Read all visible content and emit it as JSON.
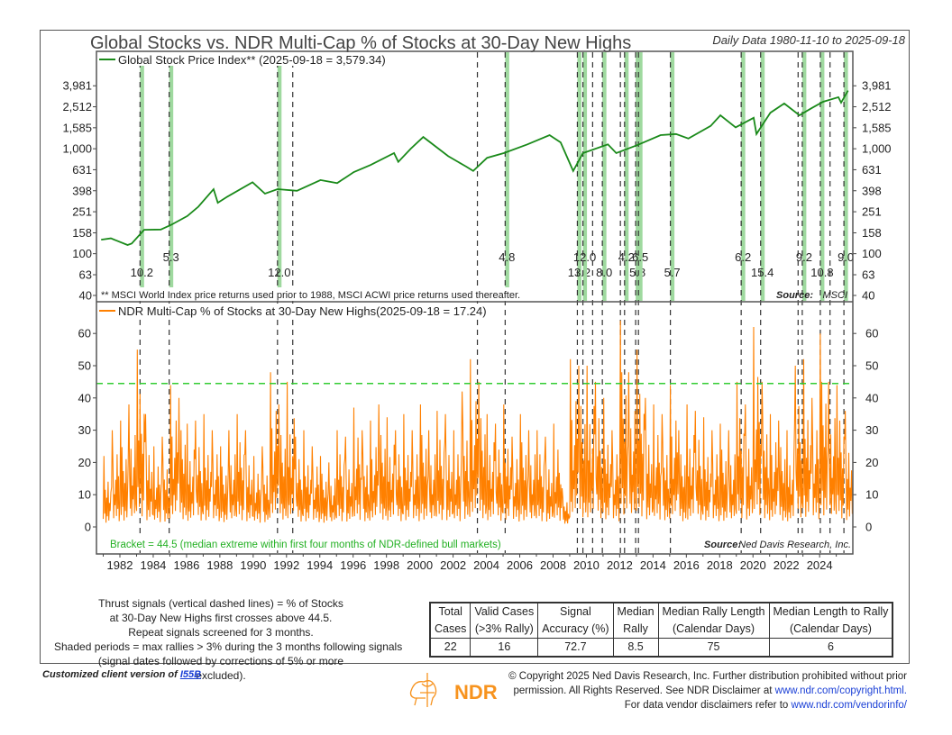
{
  "header": {
    "title": "Global Stocks vs. NDR Multi-Cap % of Stocks at 30-Day New Highs",
    "date_range": "Daily Data 1980-11-10 to 2025-09-18"
  },
  "chart_data": [
    {
      "type": "line",
      "panel": "upper",
      "series": [
        {
          "name": "Global Stock Price Index** (2025-09-18 = 3,579.34)",
          "color": "#1a8a1a",
          "points": [
            [
              "1980-11",
              136
            ],
            [
              "1981-06",
              140
            ],
            [
              "1982-06",
              121
            ],
            [
              "1982-09",
              125
            ],
            [
              "1983-06",
              169
            ],
            [
              "1984-06",
              170
            ],
            [
              "1985-01",
              187
            ],
            [
              "1986-01",
              228
            ],
            [
              "1986-09",
              280
            ],
            [
              "1987-08",
              412
            ],
            [
              "1987-11",
              306
            ],
            [
              "1988-06",
              350
            ],
            [
              "1989-12",
              480
            ],
            [
              "1990-09",
              373
            ],
            [
              "1991-06",
              412
            ],
            [
              "1992-08",
              398
            ],
            [
              "1994-01",
              503
            ],
            [
              "1995-01",
              470
            ],
            [
              "1996-01",
              600
            ],
            [
              "1997-01",
              700
            ],
            [
              "1998-06",
              908
            ],
            [
              "1998-09",
              750
            ],
            [
              "1999-06",
              1000
            ],
            [
              "2000-03",
              1295
            ],
            [
              "2001-09",
              850
            ],
            [
              "2002-10",
              675
            ],
            [
              "2003-03",
              614
            ],
            [
              "2004-01",
              820
            ],
            [
              "2005-01",
              908
            ],
            [
              "2006-06",
              1100
            ],
            [
              "2007-10",
              1350
            ],
            [
              "2008-06",
              1150
            ],
            [
              "2009-03",
              614
            ],
            [
              "2009-10",
              908
            ],
            [
              "2011-04",
              1100
            ],
            [
              "2011-10",
              908
            ],
            [
              "2013-01",
              1080
            ],
            [
              "2014-06",
              1350
            ],
            [
              "2015-05",
              1380
            ],
            [
              "2016-02",
              1250
            ],
            [
              "2017-06",
              1650
            ],
            [
              "2018-01",
              2085
            ],
            [
              "2018-12",
              1600
            ],
            [
              "2020-01",
              1970
            ],
            [
              "2020-03",
              1380
            ],
            [
              "2021-01",
              2200
            ],
            [
              "2021-11",
              2700
            ],
            [
              "2022-10",
              2085
            ],
            [
              "2023-07",
              2450
            ],
            [
              "2024-03",
              2800
            ],
            [
              "2025-02",
              3100
            ],
            [
              "2025-04",
              2750
            ],
            [
              "2025-09",
              3579
            ]
          ]
        }
      ],
      "y_scale": "log",
      "y_ticks": [
        "40",
        "63",
        "100",
        "158",
        "251",
        "398",
        "631",
        "1,000",
        "1,585",
        "2,512",
        "3,981"
      ],
      "y_tick_values": [
        40,
        63,
        100,
        158,
        251,
        398,
        631,
        1000,
        1585,
        2512,
        3981
      ],
      "ylim": [
        40,
        4500
      ],
      "footnote": "** MSCI World Index price returns used prior to 1988, MSCI ACWI price returns used thereafter.",
      "source_label": "Source:",
      "source": "MSCI"
    },
    {
      "type": "line",
      "panel": "lower",
      "series": [
        {
          "name": "NDR Multi-Cap % of Stocks at 30-Day New Highs(2025-09-18 = 17.24)",
          "color": "#ff8000",
          "resolution": "semiannual peak readings (approx.)",
          "start": 1981.0,
          "peaks": [
            22,
            30,
            33,
            38,
            55,
            35,
            25,
            28,
            44,
            40,
            32,
            33,
            35,
            30,
            25,
            30,
            35,
            30,
            22,
            25,
            48,
            38,
            45,
            28,
            30,
            25,
            22,
            20,
            30,
            28,
            37,
            30,
            33,
            38,
            34,
            30,
            35,
            30,
            38,
            30,
            36,
            35,
            30,
            42,
            52,
            45,
            35,
            32,
            38,
            28,
            35,
            30,
            30,
            28,
            32,
            12,
            52,
            50,
            50,
            45,
            40,
            30,
            64,
            48,
            55,
            40,
            38,
            35,
            44,
            30,
            38,
            36,
            34,
            30,
            32,
            30,
            45,
            38,
            62,
            45,
            35,
            33,
            30,
            50,
            52,
            40,
            60,
            45,
            44,
            36
          ]
        }
      ],
      "bracket": {
        "value": 44.5,
        "color": "#33cc33",
        "label": "Bracket = 44.5 (median extreme within first four months of NDR-defined bull markets)"
      },
      "y_ticks": [
        "0",
        "10",
        "20",
        "30",
        "40",
        "50",
        "60"
      ],
      "y_tick_values": [
        0,
        10,
        20,
        30,
        40,
        50,
        60
      ],
      "ylim": [
        0,
        65
      ],
      "source_label": "Source:",
      "source": "Ned Davis Research, Inc."
    }
  ],
  "x_axis": {
    "ticks": [
      "1982",
      "1984",
      "1986",
      "1988",
      "1990",
      "1992",
      "1994",
      "1996",
      "1998",
      "2000",
      "2002",
      "2004",
      "2006",
      "2008",
      "2010",
      "2012",
      "2014",
      "2016",
      "2018",
      "2020",
      "2022",
      "2024"
    ],
    "xlim": [
      1980.86,
      2025.72
    ]
  },
  "signals": [
    {
      "date": "1983-03",
      "rally": "10.2"
    },
    {
      "date": "1984-12",
      "rally": "5.3"
    },
    {
      "date": "1991-06",
      "rally": "12.0"
    },
    {
      "date": "1992-05",
      "rally": null
    },
    {
      "date": "2003-06",
      "rally": null
    },
    {
      "date": "2005-02",
      "rally": "4.8"
    },
    {
      "date": "2009-06",
      "rally": "13.2"
    },
    {
      "date": "2009-10",
      "rally": "12.0"
    },
    {
      "date": "2010-05",
      "rally": null
    },
    {
      "date": "2010-12",
      "rally": "8.0"
    },
    {
      "date": "2012-01",
      "rally": null
    },
    {
      "date": "2012-04",
      "rally": "4.2"
    },
    {
      "date": "2012-12",
      "rally": "5.8"
    },
    {
      "date": "2013-02",
      "rally": "6.5"
    },
    {
      "date": "2015-01",
      "rally": "5.7"
    },
    {
      "date": "2019-04",
      "rally": "6.2"
    },
    {
      "date": "2020-06",
      "rally": "15.4"
    },
    {
      "date": "2022-09",
      "rally": null
    },
    {
      "date": "2022-12",
      "rally": "9.2"
    },
    {
      "date": "2024-01",
      "rally": "10.8"
    },
    {
      "date": "2024-08",
      "rally": null
    },
    {
      "date": "2025-06",
      "rally": "9.0"
    }
  ],
  "shade_color": "#9fd99f",
  "notes": [
    "Thrust signals (vertical dashed lines) = % of Stocks",
    "at 30-Day New Highs first crosses above 44.5.",
    "Repeat signals screened for 3 months.",
    "Shaded periods = max rallies > 3% during the 3 months following signals",
    "(signal dates followed by corrections of 5% or more excluded)."
  ],
  "stats_table": {
    "headers_row1": [
      "Total",
      "Valid Cases",
      "Signal",
      "Median",
      "Median Rally Length",
      "Median Length to Rally"
    ],
    "headers_row2": [
      "Cases",
      "(>3% Rally)",
      "Accuracy (%)",
      "Rally",
      "(Calendar Days)",
      "(Calendar Days)"
    ],
    "values": [
      "22",
      "16",
      "72.7",
      "8.5",
      "75",
      "6"
    ]
  },
  "footer": {
    "client_prefix": "Customized client version of",
    "client_link": "I55B",
    "logo_text": "NDR",
    "copyright_1": "© Copyright 2025 Ned Davis Research, Inc. Further distribution prohibited without prior",
    "copyright_2a": "permission. All Rights Reserved. See NDR Disclaimer at",
    "copyright_2b": "www.ndr.com/copyright.html.",
    "copyright_3a": "For data vendor disclaimers refer to",
    "copyright_3b": "www.ndr.com/vendorinfo/"
  }
}
